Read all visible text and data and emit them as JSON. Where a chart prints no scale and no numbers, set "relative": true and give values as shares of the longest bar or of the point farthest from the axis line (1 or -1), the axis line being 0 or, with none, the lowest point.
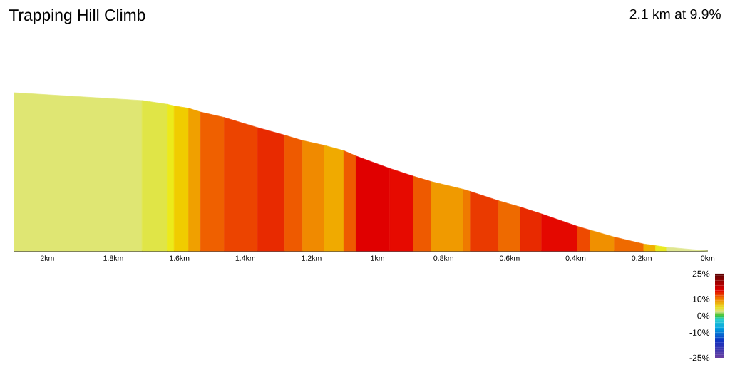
{
  "chart_data": {
    "type": "area",
    "title": "Trapping Hill Climb",
    "subtitle": "2.1 km at 9.9%",
    "relative": true,
    "xlim": [
      2.1,
      0
    ],
    "xticks": [
      {
        "value": 2,
        "label": "2km"
      },
      {
        "value": 1.8,
        "label": "1.8km"
      },
      {
        "value": 1.6,
        "label": "1.6km"
      },
      {
        "value": 1.4,
        "label": "1.4km"
      },
      {
        "value": 1.2,
        "label": "1.2km"
      },
      {
        "value": 1,
        "label": "1km"
      },
      {
        "value": 0.8,
        "label": "0.8km"
      },
      {
        "value": 0.6,
        "label": "0.6km"
      },
      {
        "value": 0.4,
        "label": "0.4km"
      },
      {
        "value": 0.2,
        "label": "0.2km"
      },
      {
        "value": 0,
        "label": "0km"
      }
    ],
    "clim": [
      -25,
      25
    ],
    "cticks": [
      {
        "value": 25,
        "label": "25%"
      },
      {
        "value": 10,
        "label": "10%"
      },
      {
        "value": 0,
        "label": "0%"
      },
      {
        "value": -10,
        "label": "-10%"
      },
      {
        "value": -25,
        "label": "-25%"
      }
    ],
    "grid": false,
    "series": [
      {
        "color": "#dfe673",
        "x": [
          2.1,
          1.713
        ],
        "values": [
          1.0,
          0.951
        ]
      },
      {
        "color": "#e0e547",
        "x": [
          1.713,
          1.637
        ],
        "values": [
          0.951,
          0.927
        ]
      },
      {
        "color": "#ecea1a",
        "x": [
          1.637,
          1.616
        ],
        "values": [
          0.927,
          0.917
        ]
      },
      {
        "color": "#f0cc00",
        "x": [
          1.616,
          1.572
        ],
        "values": [
          0.917,
          0.902
        ]
      },
      {
        "color": "#f0a000",
        "x": [
          1.572,
          1.536
        ],
        "values": [
          0.902,
          0.878
        ]
      },
      {
        "color": "#ef6000",
        "x": [
          1.536,
          1.464
        ],
        "values": [
          0.878,
          0.844
        ]
      },
      {
        "color": "#ec4400",
        "x": [
          1.464,
          1.363
        ],
        "values": [
          0.844,
          0.78
        ]
      },
      {
        "color": "#e82a00",
        "x": [
          1.363,
          1.281
        ],
        "values": [
          0.78,
          0.732
        ]
      },
      {
        "color": "#ee5a00",
        "x": [
          1.281,
          1.227
        ],
        "values": [
          0.732,
          0.698
        ]
      },
      {
        "color": "#f08a00",
        "x": [
          1.227,
          1.162
        ],
        "values": [
          0.698,
          0.668
        ]
      },
      {
        "color": "#f0aa00",
        "x": [
          1.162,
          1.102
        ],
        "values": [
          0.668,
          0.634
        ]
      },
      {
        "color": "#ee5a00",
        "x": [
          1.102,
          1.065
        ],
        "values": [
          0.634,
          0.6
        ]
      },
      {
        "color": "#e00000",
        "x": [
          1.065,
          0.963
        ],
        "values": [
          0.6,
          0.522
        ]
      },
      {
        "color": "#e60a00",
        "x": [
          0.963,
          0.892
        ],
        "values": [
          0.522,
          0.473
        ]
      },
      {
        "color": "#ee5a00",
        "x": [
          0.892,
          0.838
        ],
        "values": [
          0.473,
          0.439
        ]
      },
      {
        "color": "#f09a00",
        "x": [
          0.838,
          0.741
        ],
        "values": [
          0.439,
          0.39
        ]
      },
      {
        "color": "#ef7a00",
        "x": [
          0.741,
          0.719
        ],
        "values": [
          0.39,
          0.376
        ]
      },
      {
        "color": "#ea3a00",
        "x": [
          0.719,
          0.633
        ],
        "values": [
          0.376,
          0.317
        ]
      },
      {
        "color": "#ee6a00",
        "x": [
          0.633,
          0.568
        ],
        "values": [
          0.317,
          0.278
        ]
      },
      {
        "color": "#e82a00",
        "x": [
          0.568,
          0.503
        ],
        "values": [
          0.278,
          0.234
        ]
      },
      {
        "color": "#e40800",
        "x": [
          0.503,
          0.395
        ],
        "values": [
          0.234,
          0.156
        ]
      },
      {
        "color": "#ee4a00",
        "x": [
          0.395,
          0.356
        ],
        "values": [
          0.156,
          0.132
        ]
      },
      {
        "color": "#f09000",
        "x": [
          0.356,
          0.283
        ],
        "values": [
          0.132,
          0.088
        ]
      },
      {
        "color": "#ef6a00",
        "x": [
          0.283,
          0.194
        ],
        "values": [
          0.088,
          0.044
        ]
      },
      {
        "color": "#f0b000",
        "x": [
          0.194,
          0.158
        ],
        "values": [
          0.044,
          0.034
        ]
      },
      {
        "color": "#eaea20",
        "x": [
          0.158,
          0.125
        ],
        "values": [
          0.034,
          0.024
        ]
      },
      {
        "color": "#dfe690",
        "x": [
          0.125,
          0
        ],
        "values": [
          0.024,
          0
        ]
      }
    ]
  }
}
